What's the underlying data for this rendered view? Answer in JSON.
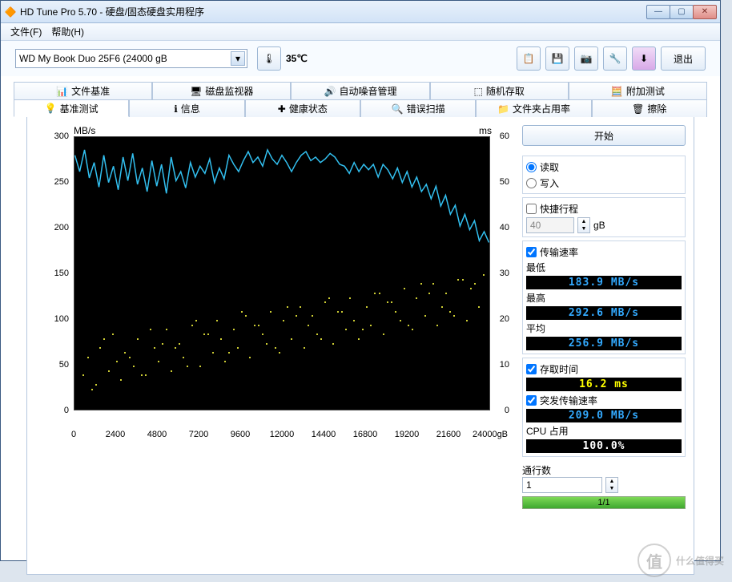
{
  "window": {
    "title": "HD Tune Pro 5.70 - 硬盘/固态硬盘实用程序",
    "min": "—",
    "max": "▢",
    "close": "✕"
  },
  "menu": {
    "file": "文件(F)",
    "help": "帮助(H)"
  },
  "toolbar": {
    "drive": "WD    My Book Duo 25F6 (24000 gB",
    "temp": "35℃",
    "exit": "退出"
  },
  "tabs_top": [
    {
      "label": "文件基准",
      "icon": "📊"
    },
    {
      "label": "磁盘监视器",
      "icon": "🖥"
    },
    {
      "label": "自动噪音管理",
      "icon": "🔊"
    },
    {
      "label": "随机存取",
      "icon": "⬚"
    },
    {
      "label": "附加测试",
      "icon": "🧮"
    }
  ],
  "tabs_bot": [
    {
      "label": "基准测试",
      "icon": "💡",
      "sel": true
    },
    {
      "label": "信息",
      "icon": "ℹ"
    },
    {
      "label": "健康状态",
      "icon": "✚"
    },
    {
      "label": "错误扫描",
      "icon": "🔍"
    },
    {
      "label": "文件夹占用率",
      "icon": "📁"
    },
    {
      "label": "擦除",
      "icon": "🗑"
    }
  ],
  "chart": {
    "y_unit": "MB/s",
    "y2_unit": "ms",
    "y_ticks": [
      300,
      250,
      200,
      150,
      100,
      50,
      0
    ],
    "y2_ticks": [
      60,
      50,
      40,
      30,
      20,
      10,
      0
    ],
    "x_ticks": [
      0,
      2400,
      4800,
      7200,
      9600,
      12000,
      14400,
      16800,
      19200,
      21600,
      "24000gB"
    ],
    "line_color": "#32c0f0",
    "scatter_color": "#cccc33",
    "line_y": [
      280,
      262,
      286,
      255,
      272,
      245,
      280,
      250,
      268,
      242,
      278,
      252,
      282,
      248,
      266,
      240,
      274,
      246,
      270,
      238,
      278,
      252,
      262,
      244,
      272,
      256,
      268,
      260,
      276,
      250,
      266,
      254,
      280,
      270,
      262,
      274,
      284,
      272,
      278,
      268,
      286,
      276,
      270,
      280,
      272,
      262,
      272,
      280,
      284,
      274,
      278,
      272,
      276,
      282,
      278,
      270,
      268,
      260,
      272,
      262,
      270,
      264,
      270,
      256,
      270,
      264,
      254,
      266,
      250,
      262,
      245,
      256,
      240,
      248,
      232,
      246,
      224,
      236,
      215,
      225,
      202,
      215,
      198,
      208,
      186,
      196,
      184
    ],
    "y_max": 300,
    "y_min": 0,
    "scatter_pts": [
      [
        0.02,
        8
      ],
      [
        0.03,
        12
      ],
      [
        0.05,
        6
      ],
      [
        0.06,
        14
      ],
      [
        0.08,
        9
      ],
      [
        0.09,
        17
      ],
      [
        0.11,
        7
      ],
      [
        0.12,
        13
      ],
      [
        0.14,
        10
      ],
      [
        0.15,
        16
      ],
      [
        0.17,
        8
      ],
      [
        0.19,
        14
      ],
      [
        0.2,
        11
      ],
      [
        0.22,
        18
      ],
      [
        0.23,
        9
      ],
      [
        0.25,
        15
      ],
      [
        0.26,
        12
      ],
      [
        0.28,
        19
      ],
      [
        0.3,
        10
      ],
      [
        0.31,
        17
      ],
      [
        0.33,
        13
      ],
      [
        0.34,
        20
      ],
      [
        0.36,
        11
      ],
      [
        0.38,
        18
      ],
      [
        0.39,
        14
      ],
      [
        0.41,
        21
      ],
      [
        0.42,
        12
      ],
      [
        0.44,
        19
      ],
      [
        0.46,
        15
      ],
      [
        0.47,
        22
      ],
      [
        0.49,
        13
      ],
      [
        0.5,
        20
      ],
      [
        0.52,
        16
      ],
      [
        0.54,
        23
      ],
      [
        0.55,
        14
      ],
      [
        0.57,
        21
      ],
      [
        0.58,
        17
      ],
      [
        0.6,
        24
      ],
      [
        0.62,
        15
      ],
      [
        0.63,
        22
      ],
      [
        0.65,
        18
      ],
      [
        0.66,
        25
      ],
      [
        0.68,
        16
      ],
      [
        0.7,
        23
      ],
      [
        0.71,
        19
      ],
      [
        0.73,
        26
      ],
      [
        0.74,
        17
      ],
      [
        0.76,
        24
      ],
      [
        0.78,
        20
      ],
      [
        0.79,
        27
      ],
      [
        0.81,
        18
      ],
      [
        0.82,
        25
      ],
      [
        0.84,
        21
      ],
      [
        0.86,
        28
      ],
      [
        0.87,
        19
      ],
      [
        0.89,
        26
      ],
      [
        0.9,
        22
      ],
      [
        0.92,
        29
      ],
      [
        0.94,
        20
      ],
      [
        0.95,
        27
      ],
      [
        0.97,
        23
      ],
      [
        0.98,
        30
      ],
      [
        0.04,
        5
      ],
      [
        0.1,
        11
      ],
      [
        0.16,
        8
      ],
      [
        0.21,
        15
      ],
      [
        0.27,
        10
      ],
      [
        0.32,
        17
      ],
      [
        0.37,
        13
      ],
      [
        0.43,
        19
      ],
      [
        0.48,
        14
      ],
      [
        0.53,
        21
      ],
      [
        0.59,
        16
      ],
      [
        0.64,
        22
      ],
      [
        0.69,
        18
      ],
      [
        0.75,
        24
      ],
      [
        0.8,
        19
      ],
      [
        0.85,
        26
      ],
      [
        0.91,
        21
      ],
      [
        0.96,
        28
      ],
      [
        0.07,
        16
      ],
      [
        0.13,
        12
      ],
      [
        0.18,
        18
      ],
      [
        0.24,
        14
      ],
      [
        0.29,
        20
      ],
      [
        0.35,
        16
      ],
      [
        0.4,
        22
      ],
      [
        0.45,
        17
      ],
      [
        0.51,
        23
      ],
      [
        0.56,
        19
      ],
      [
        0.61,
        25
      ],
      [
        0.67,
        20
      ],
      [
        0.72,
        26
      ],
      [
        0.77,
        22
      ],
      [
        0.83,
        28
      ],
      [
        0.88,
        23
      ],
      [
        0.93,
        29
      ]
    ]
  },
  "side": {
    "start": "开始",
    "read": "读取",
    "write": "写入",
    "quick": "快捷行程",
    "quick_val": "40",
    "quick_unit": "gB",
    "transfer": "传输速率",
    "min_l": "最低",
    "min_v": "183.9 MB/s",
    "max_l": "最高",
    "max_v": "292.6 MB/s",
    "avg_l": "平均",
    "avg_v": "256.9 MB/s",
    "access": "存取时间",
    "access_v": "16.2 ms",
    "burst": "突发传输速率",
    "burst_v": "209.0 MB/s",
    "cpu_l": "CPU 占用",
    "cpu_v": "100.0%",
    "passes_l": "通行数",
    "passes_v": "1",
    "progress_txt": "1/1",
    "progress_pct": 100
  },
  "watermark": "什么值得买"
}
